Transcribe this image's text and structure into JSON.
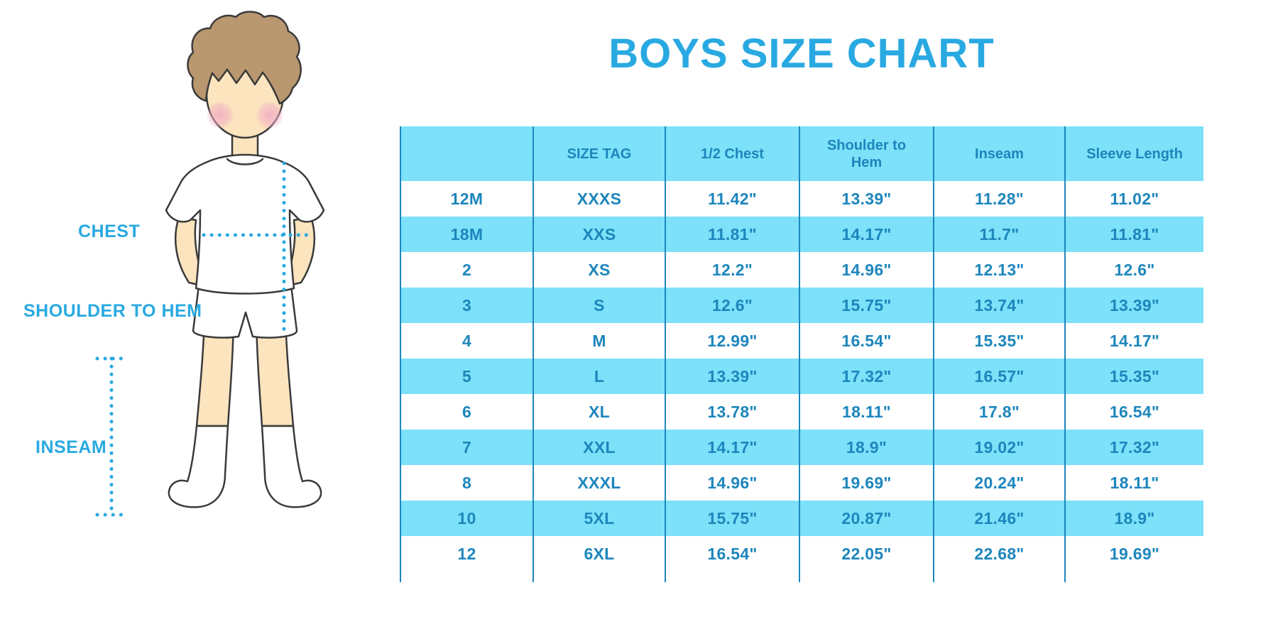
{
  "page": {
    "title": "BOYS SIZE CHART"
  },
  "figure": {
    "labels": {
      "chest": "CHEST",
      "shoulder_to_hem": "SHOULDER TO HEM",
      "inseam": "INSEAM"
    }
  },
  "colors": {
    "accent_blue": "#29a9e1",
    "table_text_blue": "#1d86bc",
    "table_line_blue": "#1d86bc",
    "row_highlight_cyan": "#7ce1f9",
    "dotted_line_blue": "#29a9e1",
    "hair_brown": "#b9976f",
    "skin_peach": "#fbe4be",
    "blush_pink": "#f2acc4"
  },
  "chart_data": {
    "type": "table",
    "title": "BOYS SIZE CHART",
    "columns": [
      "",
      "SIZE TAG",
      "1/2 Chest",
      "Shoulder to Hem",
      "Inseam",
      "Sleeve Length"
    ],
    "rows": [
      [
        "12M",
        "XXXS",
        "11.42\"",
        "13.39\"",
        "11.28\"",
        "11.02\""
      ],
      [
        "18M",
        "XXS",
        "11.81\"",
        "14.17\"",
        "11.7\"",
        "11.81\""
      ],
      [
        "2",
        "XS",
        "12.2\"",
        "14.96\"",
        "12.13\"",
        "12.6\""
      ],
      [
        "3",
        "S",
        "12.6\"",
        "15.75\"",
        "13.74\"",
        "13.39\""
      ],
      [
        "4",
        "M",
        "12.99\"",
        "16.54\"",
        "15.35\"",
        "14.17\""
      ],
      [
        "5",
        "L",
        "13.39\"",
        "17.32\"",
        "16.57\"",
        "15.35\""
      ],
      [
        "6",
        "XL",
        "13.78\"",
        "18.11\"",
        "17.8\"",
        "16.54\""
      ],
      [
        "7",
        "XXL",
        "14.17\"",
        "18.9\"",
        "19.02\"",
        "17.32\""
      ],
      [
        "8",
        "XXXL",
        "14.96\"",
        "19.69\"",
        "20.24\"",
        "18.11\""
      ],
      [
        "10",
        "5XL",
        "15.75\"",
        "20.87\"",
        "21.46\"",
        "18.9\""
      ],
      [
        "12",
        "6XL",
        "16.54\"",
        "22.05\"",
        "22.68\"",
        "19.69\""
      ]
    ],
    "row_striping": "white / cyan alternating, header cyan",
    "units": "inches"
  }
}
